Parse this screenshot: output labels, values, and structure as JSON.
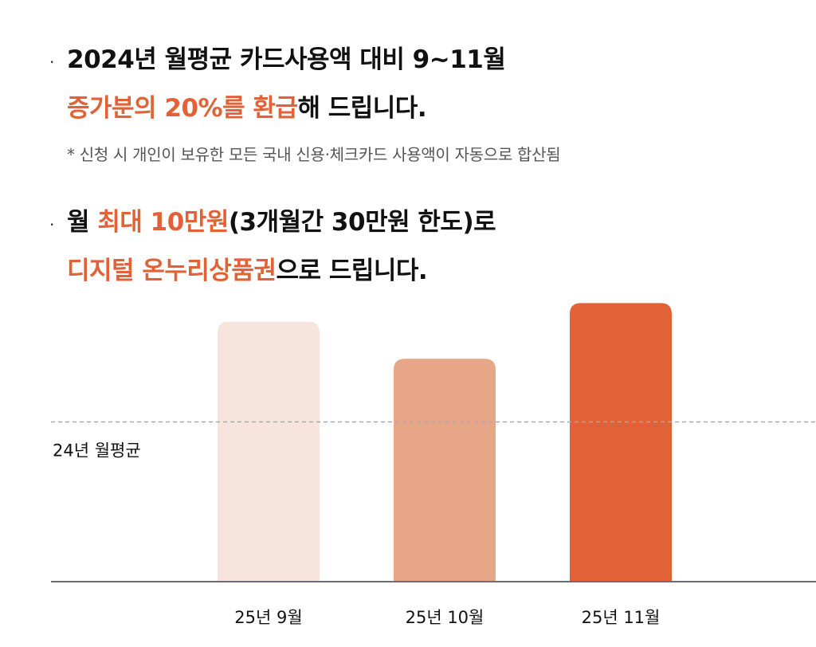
{
  "bullet1": {
    "dot": "·",
    "line1": "2024년 월평균 카드사용액 대비 9~11월",
    "line2_accent": "증가분의 20%를 환급",
    "line2_rest": "해 드립니다."
  },
  "note": "* 신청 시 개인이 보유한 모든 국내 신용·체크카드 사용액이 자동으로 합산됨",
  "bullet2": {
    "dot": "·",
    "line1_pre": "월 ",
    "line1_accent": "최대 10만원",
    "line1_rest": "(3개월간 30만원 한도)로",
    "line2_accent": "디지털 온누리상품권",
    "line2_rest": "으로 드립니다."
  },
  "colors": {
    "accent": "#E06236",
    "bar_light": "#F7E5DD",
    "bar_mid": "#E8A688",
    "bar_dark": "#E06236",
    "baseline": "#6B6E78",
    "ref_line": "#A9A9A9"
  },
  "chart_data": {
    "type": "bar",
    "categories": [
      "25년 9월",
      "25년 10월",
      "25년 11월"
    ],
    "values": [
      1.4,
      1.2,
      1.5
    ],
    "ylim": [
      0,
      1.6
    ],
    "reference_line": {
      "label": "24년 월평균",
      "value": 0.86,
      "style": "dashed"
    },
    "bar_colors": [
      "#F7E5DD",
      "#E8A688",
      "#E06236"
    ],
    "grid": false,
    "legend": "none"
  }
}
